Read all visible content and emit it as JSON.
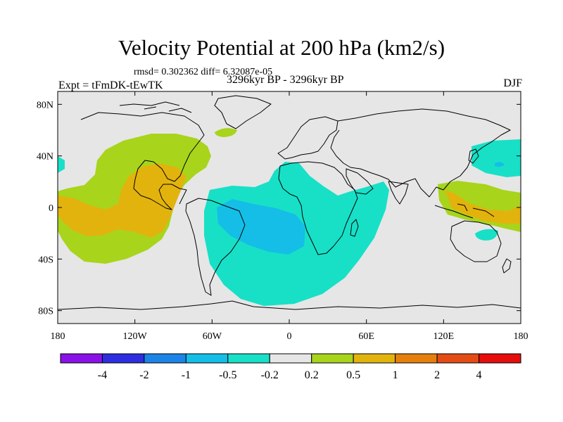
{
  "header": {
    "title": "Velocity Potential at 200 hPa (km2/s)",
    "stats": "rmsd= 0.302362  diff= 6.32087e-05",
    "experiment": "Expt = tFmDK-tEwTK",
    "period": "3296kyr BP - 3296kyr BP",
    "season": "DJF"
  },
  "map": {
    "projection": "cylindrical-equidistant",
    "lon_range": [
      -180,
      180
    ],
    "lat_range": [
      -90,
      90
    ],
    "x_ticks": [
      {
        "value": -180,
        "label": "180"
      },
      {
        "value": -120,
        "label": "120W"
      },
      {
        "value": -60,
        "label": "60W"
      },
      {
        "value": 0,
        "label": "0"
      },
      {
        "value": 60,
        "label": "60E"
      },
      {
        "value": 120,
        "label": "120E"
      },
      {
        "value": 180,
        "label": "180"
      }
    ],
    "y_ticks": [
      {
        "value": 80,
        "label": "80N"
      },
      {
        "value": 40,
        "label": "40N"
      },
      {
        "value": 0,
        "label": "0"
      },
      {
        "value": -40,
        "label": "40S"
      },
      {
        "value": -80,
        "label": "80S"
      }
    ],
    "background_color": "#e6e6e6",
    "coastline_color": "#000000"
  },
  "colorbar": {
    "colors": [
      "#8a12e6",
      "#2e2ee0",
      "#1c84e6",
      "#14bee6",
      "#17e0c7",
      "#e6e6e6",
      "#a8d41c",
      "#e3b30d",
      "#e6800d",
      "#e34c14",
      "#e60d0d"
    ],
    "labels": [
      "-4",
      "-2",
      "-1",
      "-0.5",
      "-0.2",
      "0.2",
      "0.5",
      "1",
      "2",
      "4"
    ]
  }
}
